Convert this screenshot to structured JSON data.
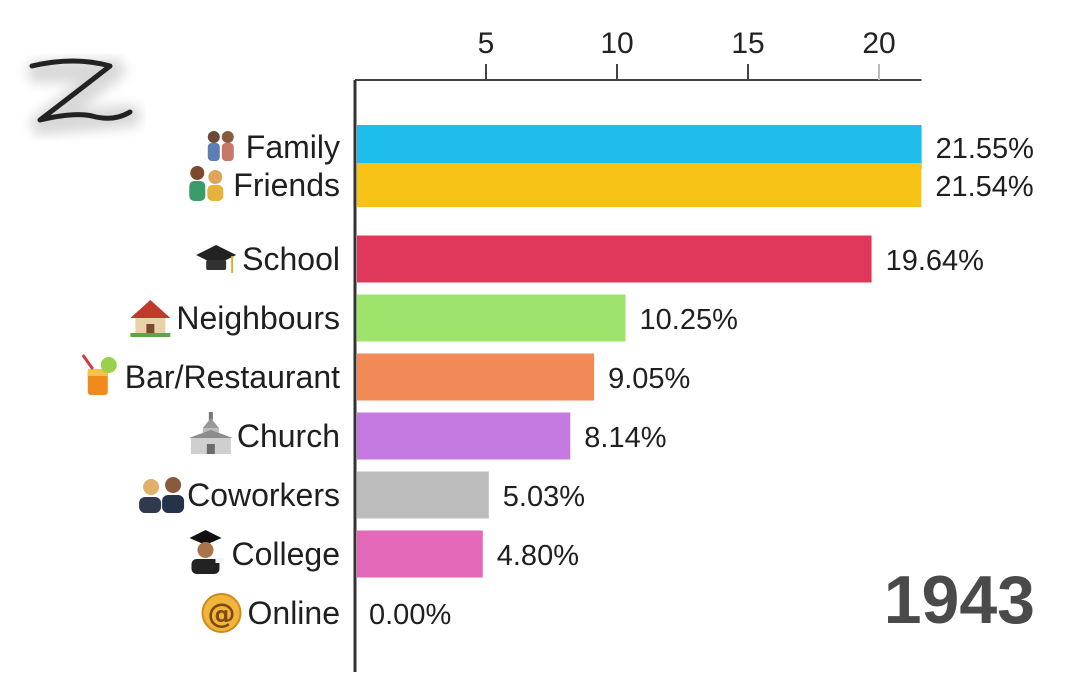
{
  "chart_data": {
    "type": "bar",
    "orientation": "horizontal",
    "categories": [
      "Family",
      "Friends",
      "School",
      "Neighbours",
      "Bar/Restaurant",
      "Church",
      "Coworkers",
      "College",
      "Online"
    ],
    "values": [
      21.55,
      21.54,
      19.64,
      10.25,
      9.05,
      8.14,
      5.03,
      4.8,
      0.0
    ],
    "value_labels": [
      "21.55%",
      "21.54%",
      "19.64%",
      "10.25%",
      "9.05%",
      "8.14%",
      "5.03%",
      "4.80%",
      "0.00%"
    ],
    "colors": [
      "#1ebdec",
      "#f6c215",
      "#e0385a",
      "#9de36c",
      "#f28a57",
      "#c47ae0",
      "#bdbdbd",
      "#e368b7",
      "#cccccc"
    ],
    "icons": [
      "family-icon",
      "friends-icon",
      "graduation-cap-icon",
      "house-icon",
      "cocktail-icon",
      "church-icon",
      "coworkers-icon",
      "graduate-icon",
      "at-sign-icon"
    ],
    "xticks": [
      5,
      10,
      15,
      20
    ],
    "xtick_labels": [
      "5",
      "10",
      "15",
      "20"
    ],
    "xlim": [
      0,
      21.55
    ],
    "axis_position": "top",
    "grid": false,
    "year": "1943"
  }
}
